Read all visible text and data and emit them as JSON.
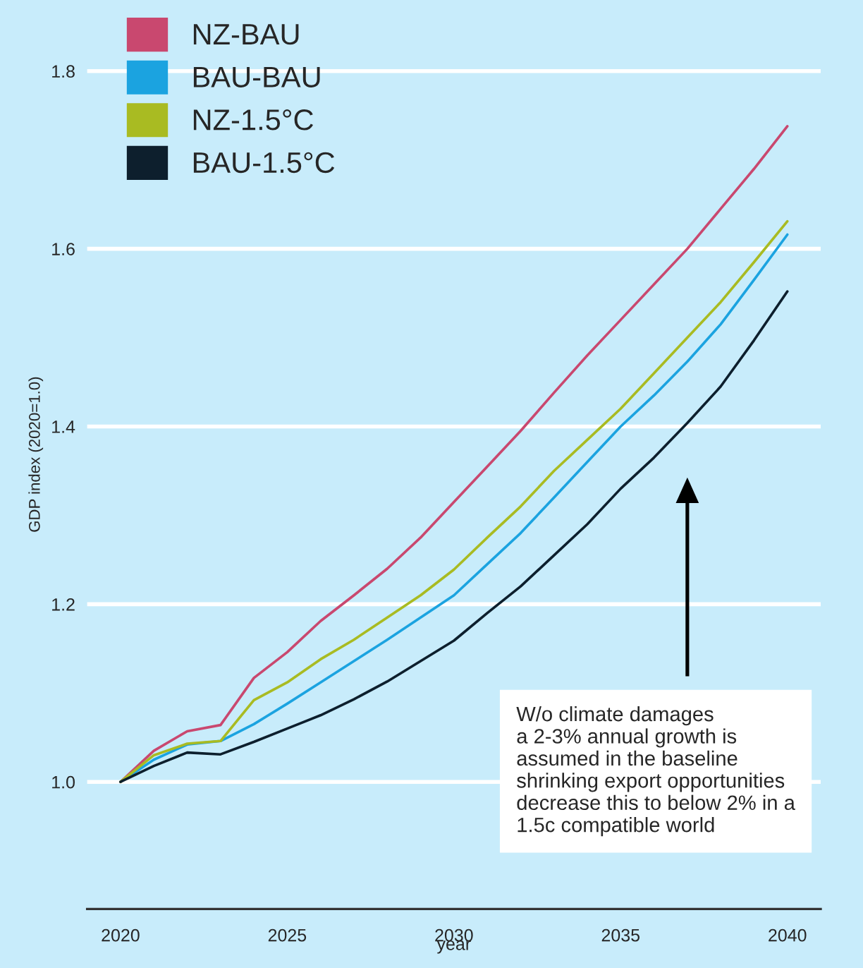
{
  "chart_data": {
    "type": "line",
    "xlabel": "year",
    "ylabel": "GDP index (2020=1.0)",
    "x": [
      2020,
      2021,
      2022,
      2023,
      2024,
      2025,
      2026,
      2027,
      2028,
      2029,
      2030,
      2031,
      2032,
      2033,
      2034,
      2035,
      2036,
      2037,
      2038,
      2039,
      2040
    ],
    "series": [
      {
        "name": "NZ-BAU",
        "color": "#c9486f",
        "values": [
          1.0,
          1.035,
          1.057,
          1.064,
          1.117,
          1.146,
          1.181,
          1.21,
          1.24,
          1.275,
          1.315,
          1.355,
          1.395,
          1.438,
          1.48,
          1.52,
          1.56,
          1.6,
          1.645,
          1.69,
          1.738
        ]
      },
      {
        "name": "BAU-BAU",
        "color": "#1ba3e0",
        "values": [
          1.0,
          1.025,
          1.042,
          1.046,
          1.065,
          1.088,
          1.112,
          1.136,
          1.16,
          1.185,
          1.21,
          1.245,
          1.28,
          1.32,
          1.36,
          1.4,
          1.435,
          1.473,
          1.515,
          1.565,
          1.616
        ]
      },
      {
        "name": "NZ-1.5°C",
        "color": "#a9bb22",
        "values": [
          1.0,
          1.03,
          1.043,
          1.046,
          1.092,
          1.112,
          1.138,
          1.16,
          1.185,
          1.21,
          1.239,
          1.275,
          1.31,
          1.35,
          1.385,
          1.42,
          1.46,
          1.5,
          1.54,
          1.585,
          1.631
        ]
      },
      {
        "name": "BAU-1.5°C",
        "color": "#0d1f2d",
        "values": [
          1.0,
          1.018,
          1.033,
          1.031,
          1.045,
          1.06,
          1.075,
          1.093,
          1.113,
          1.136,
          1.159,
          1.19,
          1.22,
          1.255,
          1.29,
          1.33,
          1.365,
          1.404,
          1.445,
          1.497,
          1.552
        ]
      }
    ],
    "xlim": [
      2019,
      2041
    ],
    "ylim": [
      0.857,
      1.88
    ],
    "xticks": [
      2020,
      2025,
      2030,
      2035,
      2040
    ],
    "yticks": [
      {
        "value": 1.0,
        "label": "1.0"
      },
      1.2,
      1.4,
      1.6,
      1.8
    ],
    "grid": "y",
    "legend": "top left",
    "annotations": [
      "W/o climate damages\na 2-3% annual growth is\nassumed in the baseline\nshrinking export opportunities\ndecrease this to below 2% in a\n1.5c compatible world"
    ]
  }
}
